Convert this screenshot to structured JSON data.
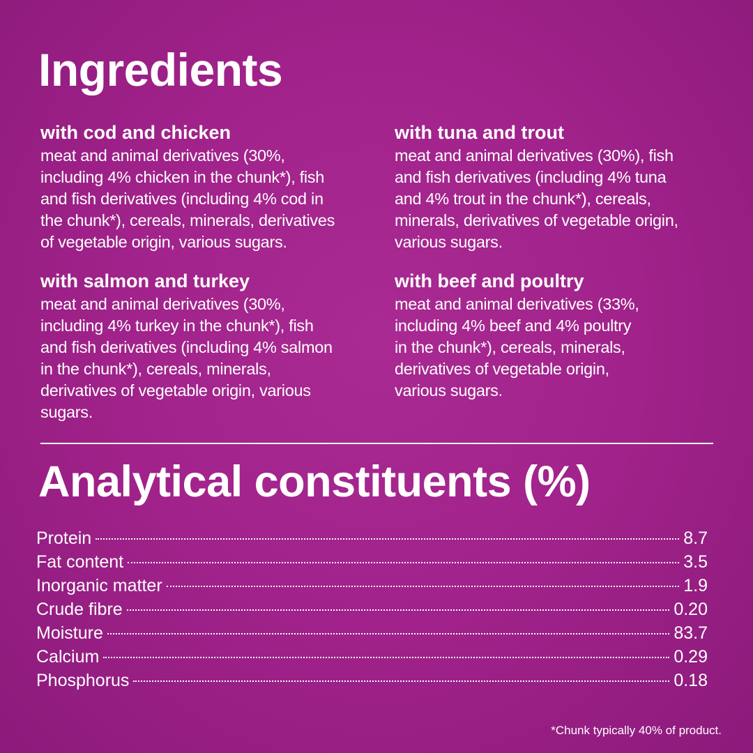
{
  "ingredients": {
    "title": "Ingredients",
    "sections": [
      {
        "heading": "with cod and chicken",
        "lines": [
          "meat and animal derivatives (30%,",
          "including 4% chicken in the chunk*), fish",
          "and fish derivatives (including 4% cod in",
          "the chunk*), cereals, minerals, derivatives",
          "of vegetable origin, various sugars."
        ]
      },
      {
        "heading": "with tuna and trout",
        "lines": [
          "meat and animal derivatives (30%), fish",
          "and fish derivatives (including 4% tuna",
          "and 4% trout in the chunk*), cereals,",
          "minerals, derivatives of vegetable origin,",
          "various sugars."
        ]
      },
      {
        "heading": "with salmon and turkey",
        "lines": [
          "meat and animal derivatives (30%,",
          "including 4% turkey in the chunk*), fish",
          "and fish derivatives (including 4% salmon",
          "in the chunk*), cereals, minerals,",
          "derivatives of vegetable origin, various",
          "sugars."
        ]
      },
      {
        "heading": "with beef and poultry",
        "lines": [
          "meat and animal derivatives (33%,",
          "including 4% beef and 4% poultry",
          "in the chunk*), cereals, minerals,",
          "derivatives of vegetable origin,",
          "various sugars."
        ]
      }
    ]
  },
  "analytical": {
    "title": "Analytical constituents (%)",
    "rows": [
      {
        "label": "Protein",
        "value": "8.7"
      },
      {
        "label": "Fat content",
        "value": "3.5"
      },
      {
        "label": "Inorganic matter",
        "value": "1.9"
      },
      {
        "label": "Crude fibre",
        "value": "0.20"
      },
      {
        "label": "Moisture",
        "value": "83.7"
      },
      {
        "label": "Calcium",
        "value": "0.29"
      },
      {
        "label": "Phosphorus",
        "value": "0.18"
      }
    ]
  },
  "footnote": "*Chunk typically 40% of product.",
  "colors": {
    "background": "#a0228a",
    "text": "#ffffff"
  }
}
